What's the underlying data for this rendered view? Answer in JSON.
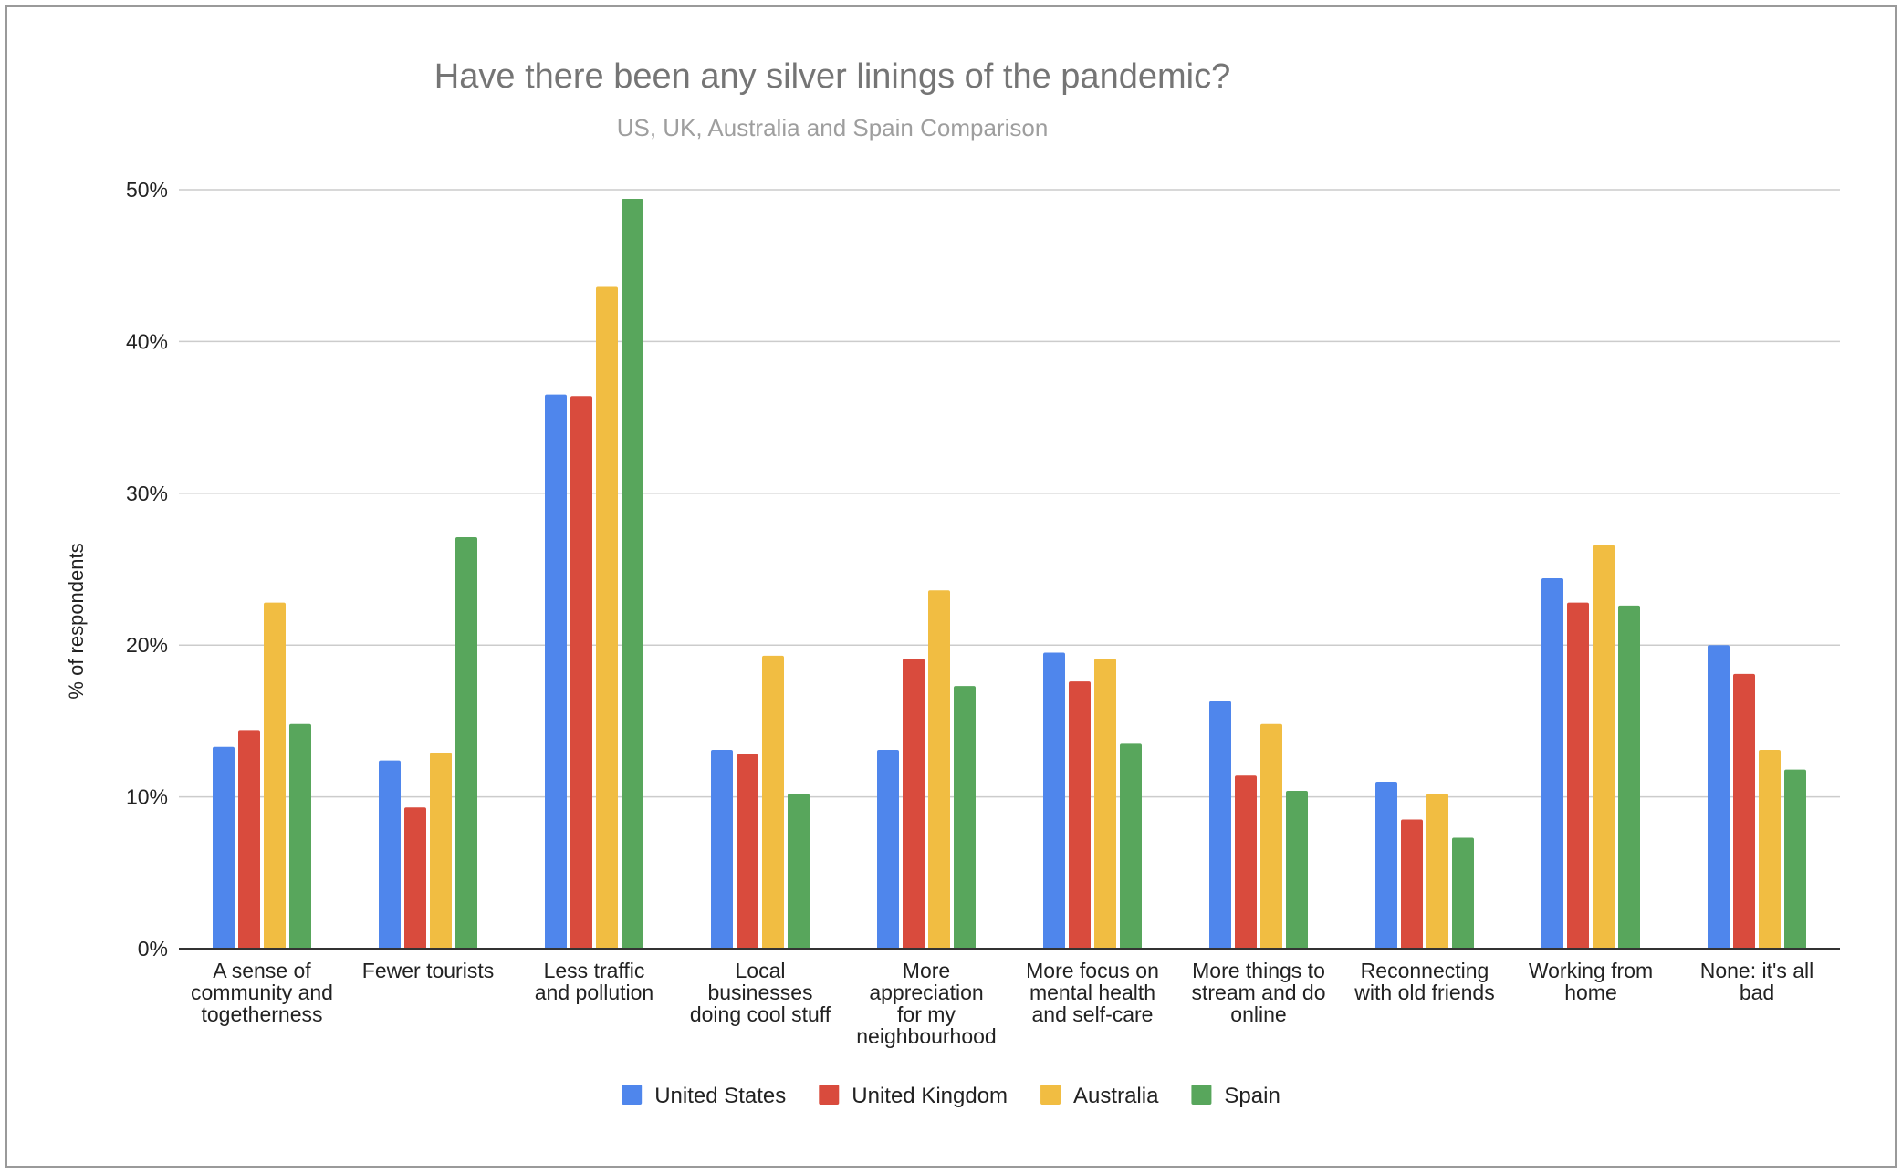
{
  "chart_data": {
    "type": "bar",
    "title": "Have there been any silver linings of the pandemic?",
    "subtitle": "US, UK, Australia and Spain Comparison",
    "xlabel": "",
    "ylabel": "% of respondents",
    "ylim": [
      0,
      50
    ],
    "yticks": [
      0,
      10,
      20,
      30,
      40,
      50
    ],
    "ytick_labels": [
      "0%",
      "10%",
      "20%",
      "30%",
      "40%",
      "50%"
    ],
    "grid": true,
    "legend_position": "bottom",
    "categories": [
      [
        "A sense of",
        "community and",
        "togetherness"
      ],
      [
        "Fewer tourists"
      ],
      [
        "Less traffic",
        "and pollution"
      ],
      [
        "Local",
        "businesses",
        "doing cool stuff"
      ],
      [
        "More",
        "appreciation",
        "for my",
        "neighbourhood"
      ],
      [
        "More focus on",
        "mental health",
        "and self-care"
      ],
      [
        "More things to",
        "stream and do",
        "online"
      ],
      [
        "Reconnecting",
        "with old friends"
      ],
      [
        "Working from",
        "home"
      ],
      [
        "None: it's all",
        "bad"
      ]
    ],
    "series": [
      {
        "name": "United States",
        "color": "#4f86ec",
        "values": [
          13.3,
          12.4,
          36.5,
          13.1,
          13.1,
          19.5,
          16.3,
          11.0,
          24.4,
          20.0
        ]
      },
      {
        "name": "United Kingdom",
        "color": "#d94b3d",
        "values": [
          14.4,
          9.3,
          36.4,
          12.8,
          19.1,
          17.6,
          11.4,
          8.5,
          22.8,
          18.1
        ]
      },
      {
        "name": "Australia",
        "color": "#f1bd42",
        "values": [
          22.8,
          12.9,
          43.6,
          19.3,
          23.6,
          19.1,
          14.8,
          10.2,
          26.6,
          13.1
        ]
      },
      {
        "name": "Spain",
        "color": "#58a65c",
        "values": [
          14.8,
          27.1,
          49.4,
          10.2,
          17.3,
          13.5,
          10.4,
          7.3,
          22.6,
          11.8
        ]
      }
    ]
  }
}
